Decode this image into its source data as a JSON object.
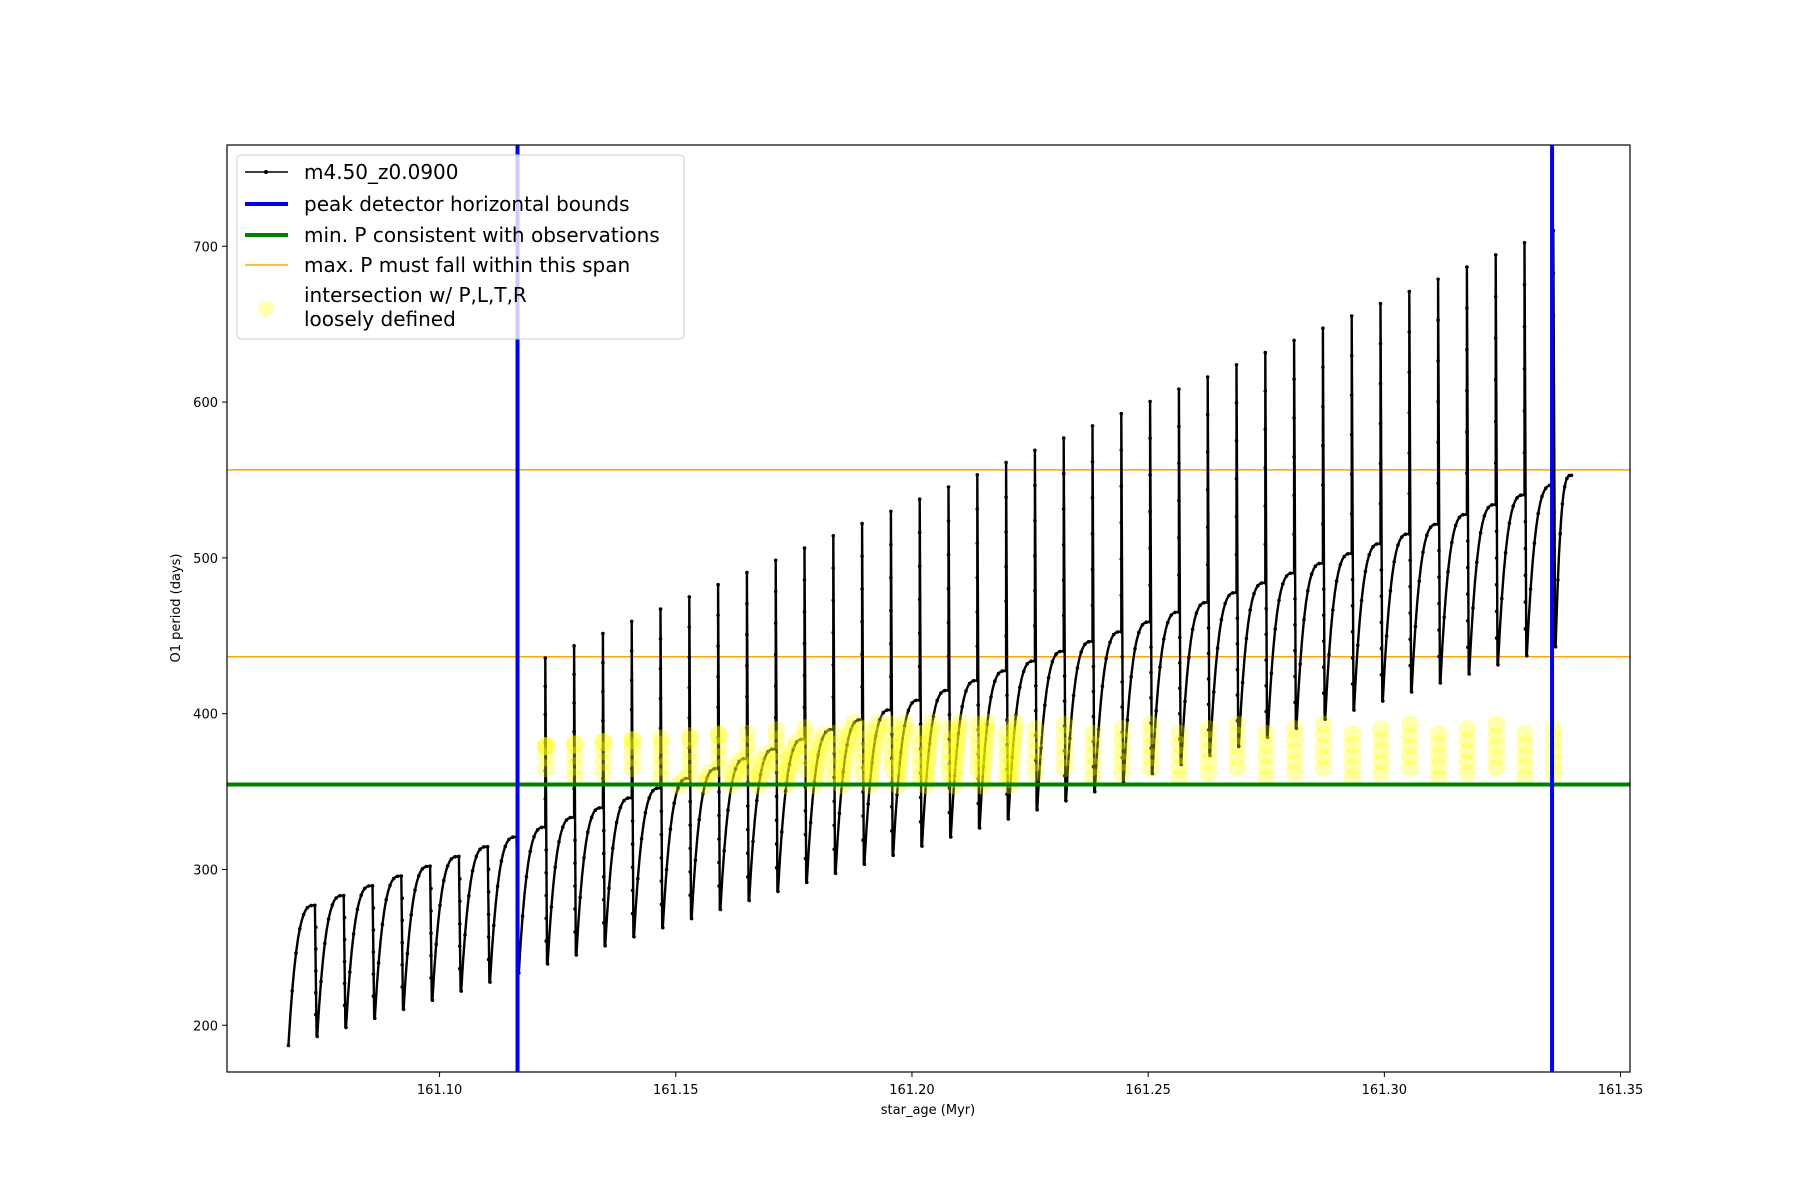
{
  "chart_data": {
    "type": "line",
    "title": "",
    "xlabel": "star_age (Myr)",
    "ylabel": "O1 period (days)",
    "xlim": [
      161.055,
      161.352
    ],
    "ylim": [
      170,
      765
    ],
    "xticks": [
      161.1,
      161.15,
      161.2,
      161.25,
      161.3,
      161.35
    ],
    "xtick_labels": [
      "161.10",
      "161.15",
      "161.20",
      "161.25",
      "161.30",
      "161.35"
    ],
    "yticks": [
      200,
      300,
      400,
      500,
      600,
      700
    ],
    "ytick_labels": [
      "200",
      "300",
      "400",
      "500",
      "600",
      "700"
    ],
    "grid": false,
    "legend_position": "top-left",
    "series": [
      {
        "name": "m4.50_z0.0900",
        "kind": "line-with-points",
        "color": "#000000",
        "x_range": [
          161.068,
          161.339
        ],
        "cycles": 45,
        "cycle_peak_period_first": 277,
        "cycle_peak_period_last": 553,
        "cycle_trough_period_first": 187,
        "cycle_trough_period_last": 443,
        "spike_top_period_range": [
          373,
          718
        ]
      },
      {
        "name": "peak detector horizontal bounds",
        "kind": "vline",
        "color": "#0000ee",
        "x_values": [
          161.1165,
          161.3355
        ]
      },
      {
        "name": "min. P consistent with observations",
        "kind": "hline",
        "color": "#008000",
        "y_values": [
          354.5
        ]
      },
      {
        "name": "max. P must fall within this span",
        "kind": "hline",
        "color": "#ffa500",
        "y_values": [
          436.5,
          556.5
        ]
      },
      {
        "name": "intersection w/ P,L,T,R\nloosely defined",
        "kind": "scatter",
        "color": "#ffff00",
        "period_band": [
          354,
          395
        ],
        "x_range": [
          161.117,
          161.335
        ]
      }
    ]
  },
  "legend": {
    "entries": [
      {
        "label": "m4.50_z0.0900"
      },
      {
        "label": "peak detector horizontal bounds"
      },
      {
        "label": "min. P consistent with observations"
      },
      {
        "label": "max. P must fall within this span"
      },
      {
        "label_line1": "intersection w/ P,L,T,R",
        "label_line2": "loosely defined"
      }
    ]
  },
  "colors": {
    "track": "#000000",
    "bounds": "#0000ee",
    "min_p": "#008000",
    "max_p": "#ffa500",
    "intersection": "#ffff00"
  }
}
